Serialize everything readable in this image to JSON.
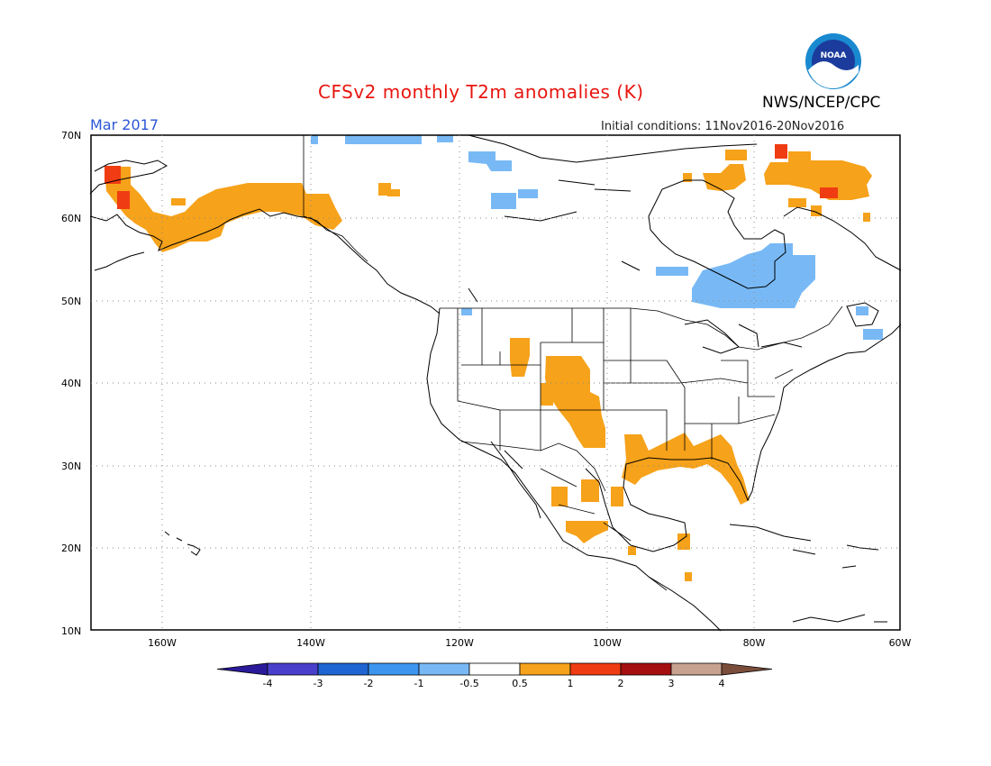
{
  "header": {
    "title": "CFSv2 monthly T2m anomalies (K)",
    "agency": "NWS/NCEP/CPC",
    "logo_text": "NOAA",
    "month": "Mar 2017",
    "initial_conditions": "Initial conditions: 11Nov2016-20Nov2016"
  },
  "axes": {
    "lat_labels": [
      "70N",
      "60N",
      "50N",
      "40N",
      "30N",
      "20N",
      "10N"
    ],
    "lon_labels": [
      "160W",
      "140W",
      "120W",
      "100W",
      "80W",
      "60W"
    ]
  },
  "colorbar": {
    "labels": [
      "-4",
      "-3",
      "-2",
      "-1",
      "-0.5",
      "0.5",
      "1",
      "2",
      "3",
      "4"
    ],
    "colors": [
      "#2a1a9a",
      "#4a3fcc",
      "#1e64d2",
      "#3c96f0",
      "#78b9f5",
      "#ffffff",
      "#f6a21a",
      "#f03c12",
      "#a50f0f",
      "#c8a291",
      "#7a4d3b"
    ]
  },
  "colors": {
    "warm_1": "#f6a21a",
    "warm_2": "#f03c12",
    "warm_3": "#a50f0f",
    "cool_1": "#78b9f5",
    "cool_2": "#3c96f0"
  }
}
